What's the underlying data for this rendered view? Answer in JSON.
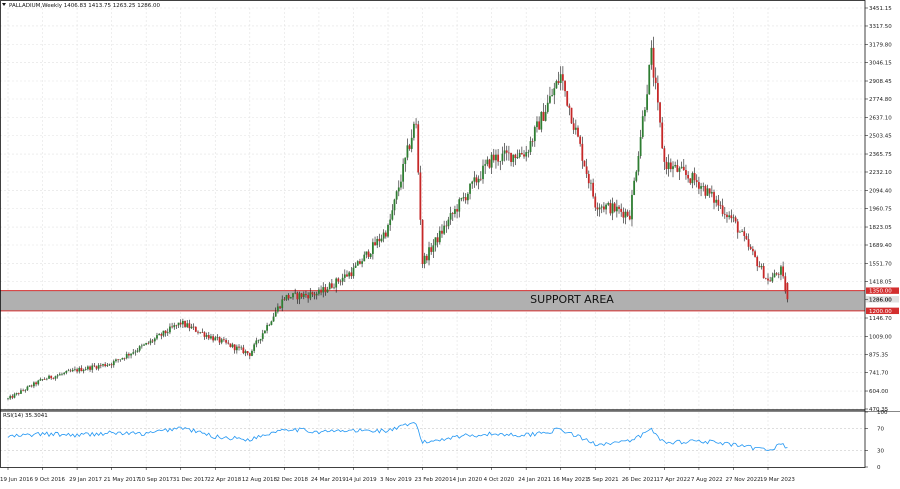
{
  "header": {
    "symbol_line": "PALLADIUM,Weekly  1406.83 1413.75 1263.25 1286.00"
  },
  "rsi_header": "RSI(14) 35.3041",
  "zone_label": "SUPPORT AREA",
  "colors": {
    "bull": "#2e7d32",
    "bear": "#c62828",
    "wick": "#111111",
    "zone_line": "#d32f2f",
    "zone_fill": "#b0b0b0",
    "rsi_line": "#2196f3",
    "grid": "#e2e2e2"
  },
  "chart_data": [
    {
      "type": "candlestick",
      "title": "PALLADIUM,Weekly",
      "last_bar": {
        "open": 1406.83,
        "high": 1413.75,
        "low": 1263.25,
        "close": 1286.0
      },
      "ylim": [
        470.35,
        3451.15
      ],
      "y_ticks": [
        "3451.15",
        "3317.50",
        "3179.80",
        "3046.15",
        "2908.45",
        "2774.80",
        "2637.10",
        "2503.45",
        "2365.75",
        "2232.10",
        "2094.40",
        "1960.75",
        "1823.05",
        "1689.40",
        "1551.70",
        "1418.05",
        "1286.00",
        "1146.70",
        "1009.00",
        "875.35",
        "741.70",
        "604.00",
        "470.35"
      ],
      "x_ticks": [
        "19 Jun 2016",
        "9 Oct 2016",
        "29 Jan 2017",
        "21 May 2017",
        "10 Sep 2017",
        "31 Dec 2017",
        "22 Apr 2018",
        "12 Aug 2018",
        "2 Dec 2018",
        "24 Mar 2019",
        "14 Jul 2019",
        "3 Nov 2019",
        "23 Feb 2020",
        "14 Jun 2020",
        "4 Oct 2020",
        "24 Jan 2021",
        "16 May 2021",
        "5 Sep 2021",
        "26 Dec 2021",
        "17 Apr 2022",
        "7 Aug 2022",
        "27 Nov 2022",
        "19 Mar 2023"
      ],
      "path": [
        [
          "19 Jun 2016",
          545
        ],
        [
          "9 Oct 2016",
          690
        ],
        [
          "29 Jan 2017",
          760
        ],
        [
          "21 May 2017",
          810
        ],
        [
          "10 Sep 2017",
          950
        ],
        [
          "31 Dec 2017",
          1110
        ],
        [
          "22 Apr 2018",
          990
        ],
        [
          "12 Aug 2018",
          880
        ],
        [
          "2 Dec 2018",
          1300
        ],
        [
          "24 Mar 2019",
          1330
        ],
        [
          "14 Jul 2019",
          1500
        ],
        [
          "3 Nov 2019",
          1810
        ],
        [
          "1 Feb 2020",
          2620
        ],
        [
          "23 Feb 2020",
          1560
        ],
        [
          "14 Jun 2020",
          1970
        ],
        [
          "4 Oct 2020",
          2330
        ],
        [
          "24 Jan 2021",
          2380
        ],
        [
          "16 May 2021",
          2950
        ],
        [
          "5 Sep 2021",
          2000
        ],
        [
          "26 Dec 2021",
          1920
        ],
        [
          "6 Mar 2022",
          3100
        ],
        [
          "17 Apr 2022",
          2300
        ],
        [
          "7 Aug 2022",
          2150
        ],
        [
          "27 Nov 2022",
          1870
        ],
        [
          "19 Mar 2023",
          1420
        ],
        [
          "30 Apr 2023",
          1500
        ],
        [
          "21 May 2023",
          1286
        ]
      ],
      "support_zone": {
        "label": "SUPPORT AREA",
        "upper": 1350.0,
        "lower": 1200.0,
        "upper_label": "1350.00",
        "lower_label": "1200.00",
        "current_label": "1286.00"
      }
    },
    {
      "type": "line",
      "title": "RSI(14) 35.3041",
      "ylim": [
        0,
        100
      ],
      "y_ticks": [
        "100",
        "70",
        "30",
        "0"
      ],
      "levels": [
        70,
        30
      ],
      "path": [
        [
          "19 Jun 2016",
          55
        ],
        [
          "9 Oct 2016",
          60
        ],
        [
          "29 Jan 2017",
          58
        ],
        [
          "21 May 2017",
          62
        ],
        [
          "10 Sep 2017",
          60
        ],
        [
          "31 Dec 2017",
          72
        ],
        [
          "22 Apr 2018",
          55
        ],
        [
          "12 Aug 2018",
          50
        ],
        [
          "2 Dec 2018",
          70
        ],
        [
          "24 Mar 2019",
          64
        ],
        [
          "14 Jul 2019",
          66
        ],
        [
          "3 Nov 2019",
          66
        ],
        [
          "1 Feb 2020",
          80
        ],
        [
          "23 Feb 2020",
          44
        ],
        [
          "14 Jun 2020",
          56
        ],
        [
          "4 Oct 2020",
          60
        ],
        [
          "24 Jan 2021",
          58
        ],
        [
          "16 May 2021",
          68
        ],
        [
          "5 Sep 2021",
          42
        ],
        [
          "26 Dec 2021",
          46
        ],
        [
          "6 Mar 2022",
          68
        ],
        [
          "17 Apr 2022",
          44
        ],
        [
          "7 Aug 2022",
          48
        ],
        [
          "27 Nov 2022",
          40
        ],
        [
          "19 Mar 2023",
          30
        ],
        [
          "30 Apr 2023",
          42
        ],
        [
          "21 May 2023",
          35.3
        ]
      ]
    }
  ]
}
